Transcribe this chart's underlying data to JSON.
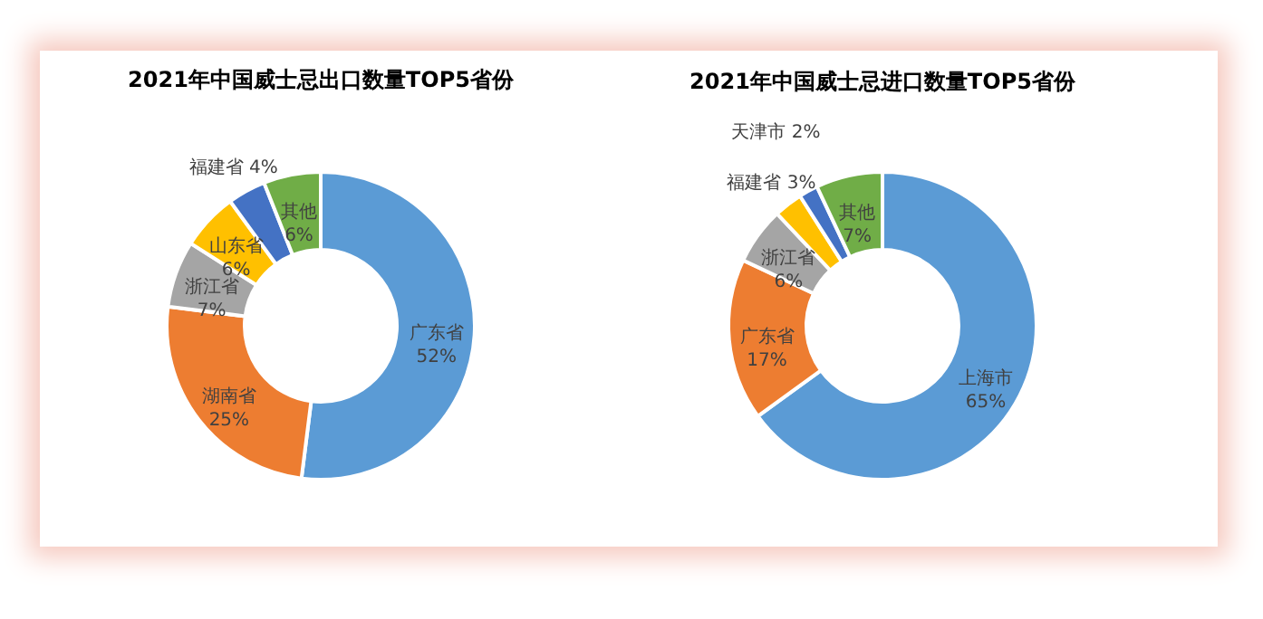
{
  "chart_data": [
    {
      "type": "donut",
      "title": "2021年中国威士忌出口数量TOP5省份",
      "categories": [
        "广东省",
        "湖南省",
        "浙江省",
        "山东省",
        "福建省",
        "其他"
      ],
      "values": [
        52,
        25,
        7,
        6,
        4,
        6
      ],
      "value_labels": [
        "52%",
        "25%",
        "7%",
        "6%",
        "4%",
        "6%"
      ],
      "colors": [
        "#5b9bd5",
        "#ed7d31",
        "#a5a5a5",
        "#ffc000",
        "#4472c4",
        "#70ad47"
      ]
    },
    {
      "type": "donut",
      "title": "2021年中国威士忌进口数量TOP5省份",
      "categories": [
        "上海市",
        "广东省",
        "浙江省",
        "福建省",
        "天津市",
        "其他"
      ],
      "values": [
        65,
        17,
        6,
        3,
        2,
        7
      ],
      "value_labels": [
        "65%",
        "17%",
        "6%",
        "3%",
        "2%",
        "7%"
      ],
      "colors": [
        "#5b9bd5",
        "#ed7d31",
        "#a5a5a5",
        "#ffc000",
        "#4472c4",
        "#70ad47"
      ]
    }
  ]
}
